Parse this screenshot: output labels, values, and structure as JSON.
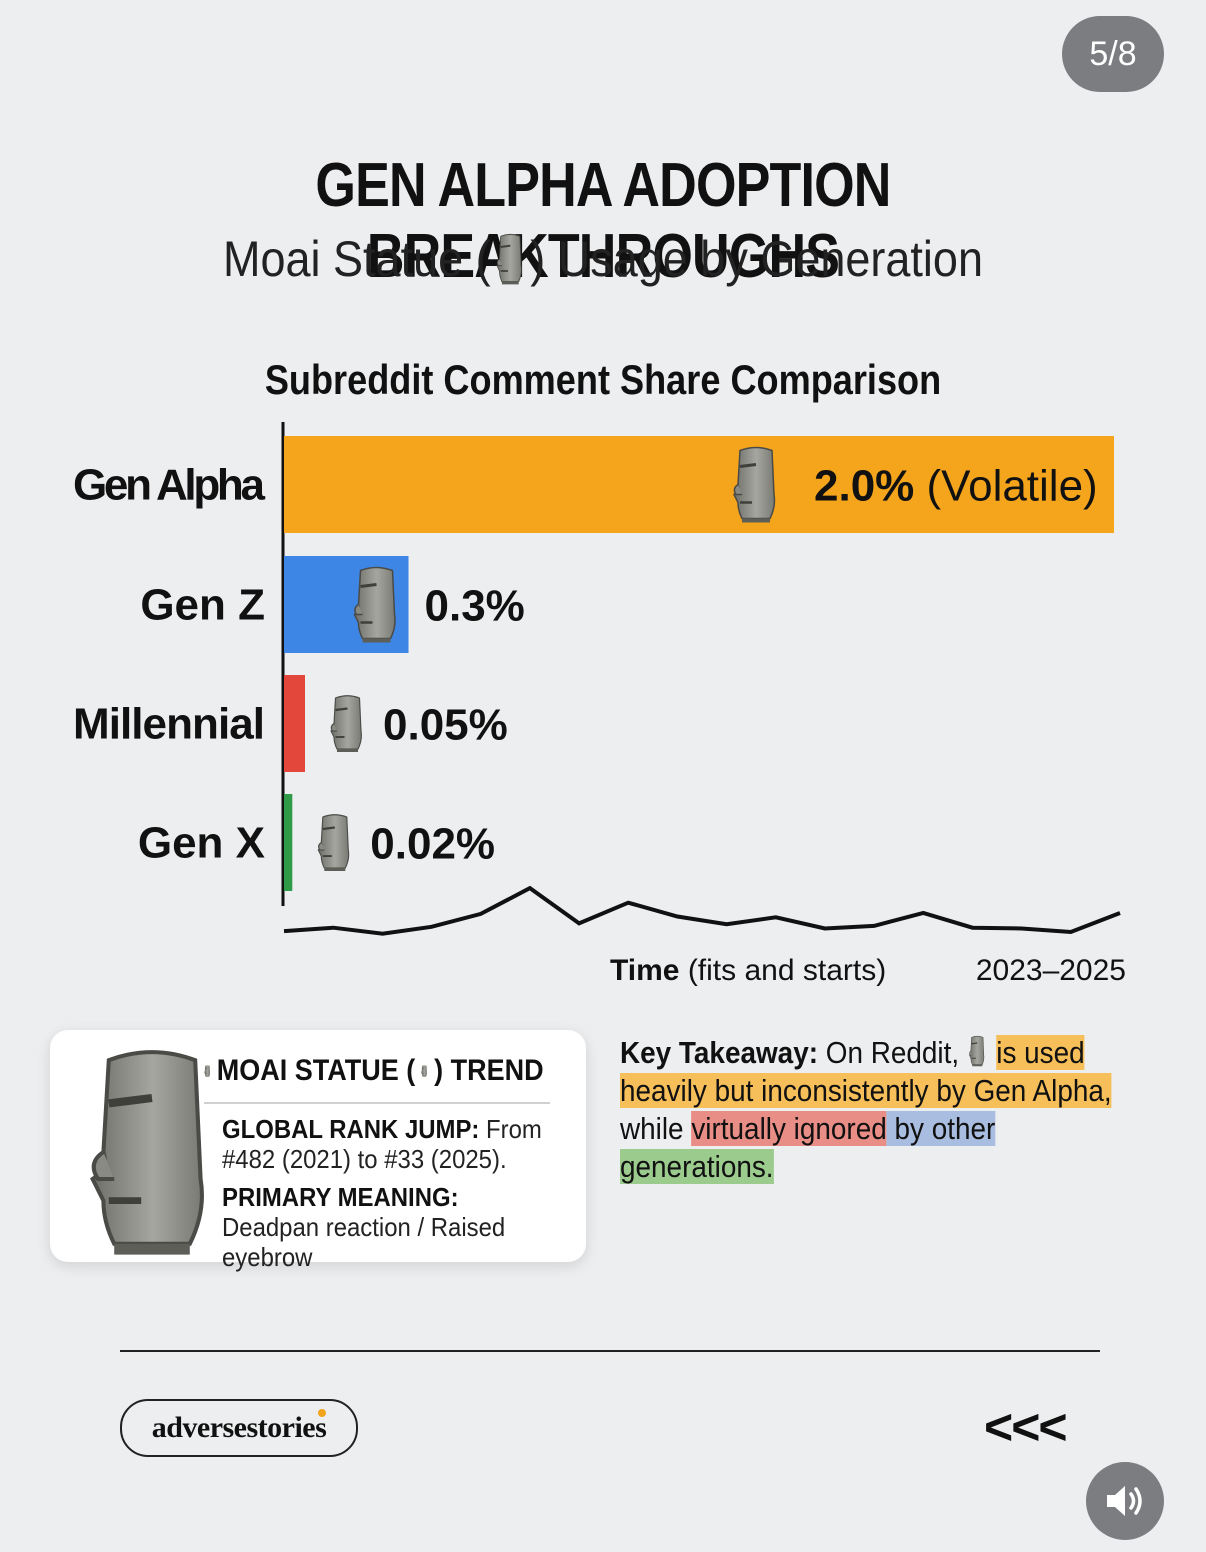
{
  "page_counter": "5/8",
  "title": "GEN ALPHA ADOPTION BREAKTHROUGHS",
  "subtitle": {
    "before": "Moai Statue (",
    "after": ") Usage by Generation",
    "icon": "moai-icon"
  },
  "chart_data": {
    "type": "bar",
    "orientation": "horizontal",
    "title": "Subreddit Comment Share Comparison",
    "categories": [
      "Gen Alpha",
      "Gen Z",
      "Millennial",
      "Gen X"
    ],
    "values": [
      2.0,
      0.3,
      0.05,
      0.02
    ],
    "value_labels": [
      "2.0%",
      "0.3%",
      "0.05%",
      "0.02%"
    ],
    "value_notes": [
      "(Volatile)",
      "",
      "",
      ""
    ],
    "colors": [
      "#f5a51c",
      "#3d86e6",
      "#e3473c",
      "#2f9a48"
    ],
    "xlim": [
      0,
      2.0
    ],
    "legend": "none",
    "grid": false,
    "time_series": {
      "label_bold": "Time",
      "label_rest": " (fits and starts)",
      "range_label": "2023–2025",
      "values": [
        1.5,
        1.9,
        1.2,
        2.0,
        3.5,
        6.5,
        2.4,
        4.8,
        3.2,
        2.3,
        3.1,
        1.8,
        2.1,
        3.6,
        1.9,
        1.8,
        1.4,
        3.6
      ]
    }
  },
  "trend_card": {
    "heading_prefix": "MOAI STATUE (",
    "heading_suffix": ") TREND",
    "rank_label": "GLOBAL RANK JUMP:",
    "rank_text": " From #482 (2021) to #33 (2025).",
    "meaning_label": "PRIMARY MEANING:",
    "meaning_text": " Deadpan reaction / Raised eyebrow"
  },
  "takeaway": {
    "label": "Key Takeaway:",
    "text_1": " On Reddit, ",
    "hl_1": "is used heavily but inconsistently by Gen Alpha,",
    "text_2": " while ",
    "hl_2": "virtually ignored",
    "hl_3": " by other",
    "hl_4": "generations.",
    "colors": {
      "orange": "#f6bf5a",
      "red": "#e98e86",
      "blue": "#a9bde0",
      "green": "#9ccb8e"
    }
  },
  "footer": {
    "brand": "adversestories",
    "nav": "<<<"
  },
  "icons": {
    "moai": "moai-icon",
    "speaker": "speaker-icon"
  }
}
